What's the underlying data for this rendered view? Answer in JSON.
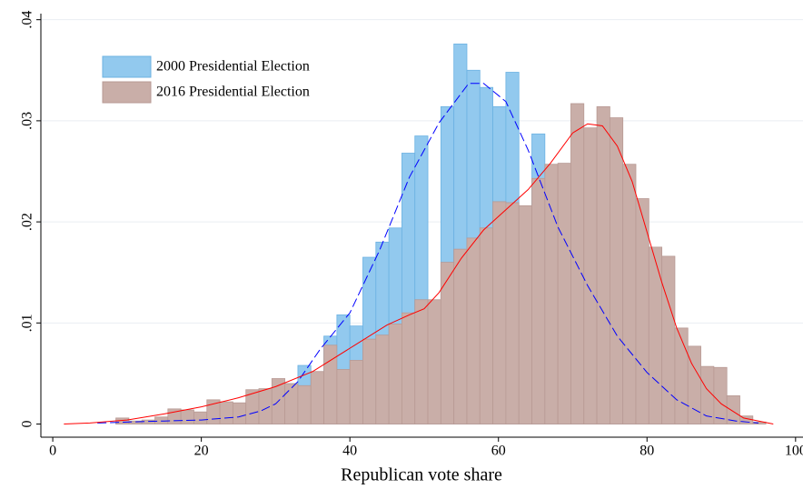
{
  "chart_data": {
    "type": "histogram",
    "x_label": "Republican vote share",
    "bins": [
      8.5,
      10.25,
      12,
      13.75,
      15.5,
      17.25,
      19,
      20.75,
      22.5,
      24.25,
      26,
      27.75,
      29.5,
      31.25,
      33,
      34.75,
      36.5,
      38.25,
      40,
      41.75,
      43.5,
      45.25,
      47,
      48.75,
      50.5,
      52.25,
      54,
      55.75,
      57.5,
      59.25,
      61,
      62.75,
      64.5,
      66.25,
      68,
      69.75,
      71.5,
      73.25,
      75,
      76.75,
      78.5,
      80.25,
      82,
      83.75,
      85.5,
      87.25,
      89,
      90.75,
      92.5,
      94.25,
      96
    ],
    "series": [
      {
        "name": "2000 Presidential Election",
        "color": "#92c9ee",
        "edge": "#6cb2e2",
        "values": [
          0.0001,
          0.0001,
          0.0002,
          0.0003,
          0.0004,
          0.0005,
          0.0006,
          0.0007,
          0.0009,
          0.0012,
          0.0017,
          0.0022,
          0.003,
          0.004,
          0.0058,
          0.0039,
          0.0087,
          0.0108,
          0.0097,
          0.0165,
          0.018,
          0.0194,
          0.0268,
          0.0285,
          0.0105,
          0.0314,
          0.0376,
          0.035,
          0.0333,
          0.0314,
          0.0348,
          0.0205,
          0.0287,
          0.022,
          0.018,
          0.014,
          0.011,
          0.008,
          0.006,
          0.004,
          0.003,
          0.002,
          0.0015,
          0.001,
          0.0007,
          0.0004,
          0.0002,
          0.0001,
          0.0001,
          0.0001
        ]
      },
      {
        "name": "2016 Presidential Election",
        "color": "#c9aea8",
        "edge": "#b89a94",
        "values": [
          0.0006,
          0.0003,
          0.0004,
          0.0007,
          0.0015,
          0.0014,
          0.0012,
          0.0024,
          0.0022,
          0.0021,
          0.0034,
          0.0035,
          0.0045,
          0.004,
          0.0038,
          0.0052,
          0.0078,
          0.0054,
          0.0063,
          0.0084,
          0.0088,
          0.0099,
          0.011,
          0.0123,
          0.0123,
          0.016,
          0.0173,
          0.0184,
          0.0194,
          0.022,
          0.0219,
          0.0216,
          0.0243,
          0.0257,
          0.0258,
          0.0317,
          0.0293,
          0.0314,
          0.0303,
          0.0257,
          0.0223,
          0.0175,
          0.0166,
          0.0095,
          0.0077,
          0.0057,
          0.0056,
          0.0028,
          0.0008,
          0.0002
        ]
      }
    ],
    "kde": [
      {
        "color": "#0000ff",
        "dashed": true,
        "x": [
          6,
          10,
          15,
          20,
          25,
          28,
          30,
          33,
          36,
          40,
          44,
          48,
          52,
          56,
          58,
          61,
          64,
          68,
          72,
          76,
          80,
          84,
          88,
          92,
          95
        ],
        "values": [
          0.0001,
          0.0002,
          0.0003,
          0.0004,
          0.0007,
          0.0013,
          0.002,
          0.0042,
          0.0074,
          0.011,
          0.0172,
          0.0244,
          0.0298,
          0.0337,
          0.0337,
          0.0319,
          0.0271,
          0.0195,
          0.0137,
          0.0087,
          0.0051,
          0.0024,
          0.0008,
          0.0003,
          0.0001
        ]
      },
      {
        "color": "#ff0000",
        "dashed": false,
        "x": [
          1.5,
          5,
          10,
          15,
          20,
          25,
          30,
          35,
          40,
          45,
          48,
          50,
          52,
          55,
          58,
          61,
          64,
          67,
          70,
          72,
          74,
          76,
          78,
          80,
          82,
          84,
          86,
          88,
          90,
          93,
          97
        ],
        "values": [
          0,
          0.0001,
          0.0004,
          0.001,
          0.0017,
          0.0026,
          0.0037,
          0.0052,
          0.0075,
          0.0098,
          0.0108,
          0.0114,
          0.013,
          0.0164,
          0.0192,
          0.0212,
          0.0232,
          0.0258,
          0.0288,
          0.0297,
          0.0295,
          0.0275,
          0.024,
          0.019,
          0.014,
          0.0095,
          0.006,
          0.0035,
          0.002,
          0.0006,
          0
        ]
      }
    ],
    "xlim": [
      -1.6,
      101
    ],
    "ylim": [
      -0.0013,
      0.0406
    ],
    "xticks": [
      0,
      20,
      40,
      60,
      80,
      100
    ],
    "yticks": [
      0,
      {
        "value": 0.01,
        "label": ".01"
      },
      {
        "value": 0.02,
        "label": ".02"
      },
      {
        "value": 0.03,
        "label": ".03"
      },
      {
        "value": 0.04,
        "label": ".04"
      }
    ],
    "grid": true
  }
}
